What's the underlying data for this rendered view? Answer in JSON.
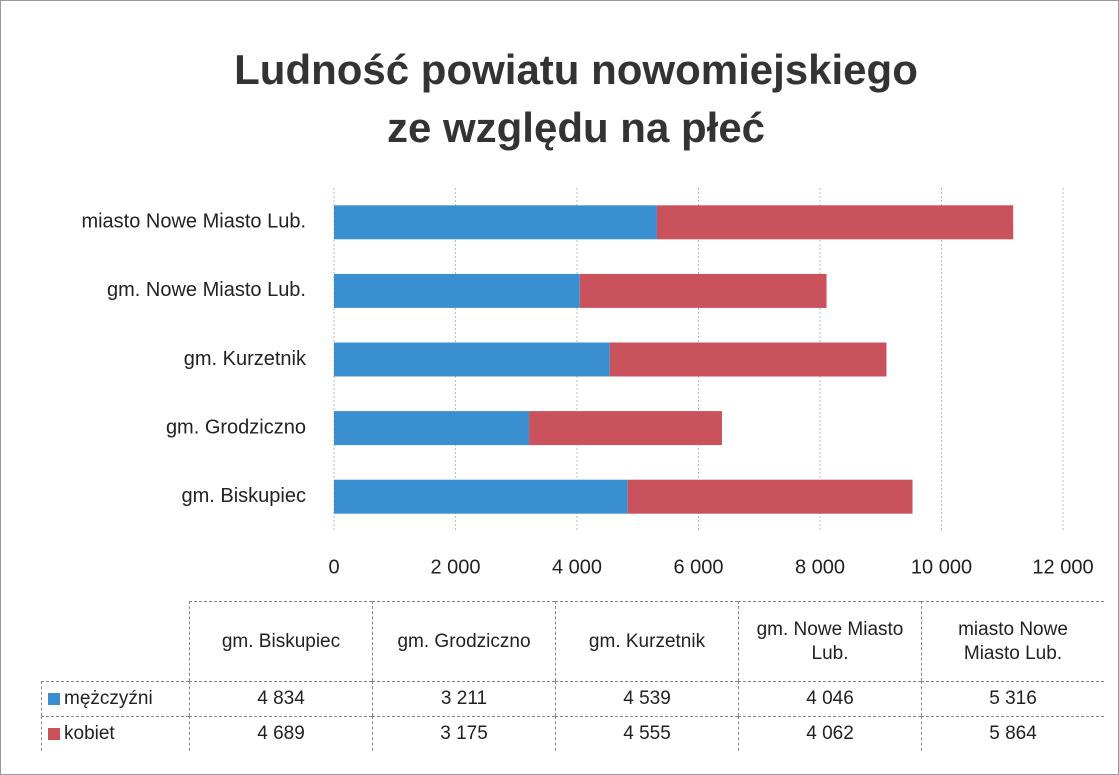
{
  "chart_data": {
    "type": "bar",
    "orientation": "horizontal",
    "stacked": true,
    "title": "Ludność powiatu nowomiejskiego ze względu na płeć",
    "categories": [
      "gm. Biskupiec",
      "gm. Grodziczno",
      "gm. Kurzetnik",
      "gm. Nowe Miasto Lub.",
      "miasto Nowe Miasto Lub."
    ],
    "series": [
      {
        "name": "mężczyźni",
        "color": "#3a8fd1",
        "values": [
          4834,
          3211,
          4539,
          4046,
          5316
        ],
        "value_labels": [
          "4 834",
          "3 211",
          "4 539",
          "4 046",
          "5 316"
        ]
      },
      {
        "name": "kobiet",
        "color": "#c9525c",
        "values": [
          4689,
          3175,
          4555,
          4062,
          5864
        ],
        "value_labels": [
          "4 689",
          "3 175",
          "4 555",
          "4 062",
          "5 864"
        ]
      }
    ],
    "xlim": [
      0,
      12000
    ],
    "xticks": [
      0,
      {
        "value": 2000,
        "label": "2 000"
      },
      {
        "value": 4000,
        "label": "4 000"
      },
      {
        "value": 6000,
        "label": "6 000"
      },
      {
        "value": 8000,
        "label": "8 000"
      },
      {
        "value": 10000,
        "label": "10 000"
      },
      {
        "value": 12000,
        "label": "12 000"
      }
    ],
    "grid": true
  }
}
